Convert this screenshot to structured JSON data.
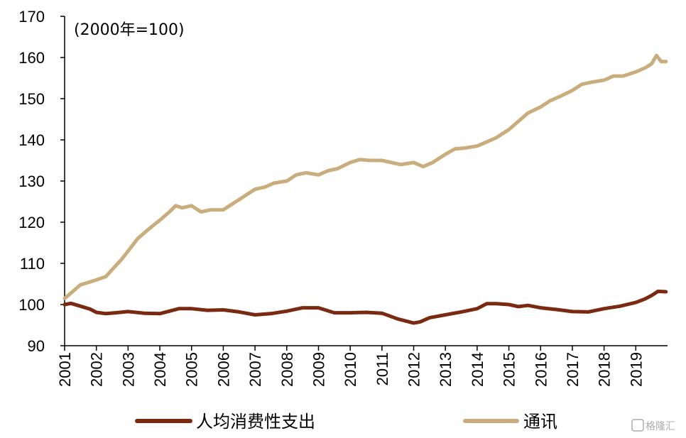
{
  "chart_data": {
    "type": "line",
    "annotation": "(2000年=100)",
    "ylim": [
      90,
      170
    ],
    "yticks": [
      90,
      100,
      110,
      120,
      130,
      140,
      150,
      160,
      170
    ],
    "xlim": [
      2001,
      2020
    ],
    "xticks": [
      "2001",
      "2002",
      "2003",
      "2004",
      "2005",
      "2006",
      "2007",
      "2008",
      "2009",
      "2010",
      "2011",
      "2012",
      "2013",
      "2014",
      "2015",
      "2016",
      "2017",
      "2018",
      "2019"
    ],
    "grid": false,
    "legend_position": "bottom",
    "series": [
      {
        "name": "人均消费性支出",
        "color": "#7a2a10",
        "x": [
          2001.0,
          2001.2,
          2001.5,
          2001.8,
          2002.0,
          2002.3,
          2002.6,
          2003.0,
          2003.5,
          2004.0,
          2004.3,
          2004.6,
          2005.0,
          2005.5,
          2006.0,
          2006.5,
          2007.0,
          2007.5,
          2008.0,
          2008.5,
          2009.0,
          2009.5,
          2010.0,
          2010.5,
          2011.0,
          2011.5,
          2012.0,
          2012.2,
          2012.5,
          2013.0,
          2013.5,
          2014.0,
          2014.3,
          2014.6,
          2015.0,
          2015.3,
          2015.6,
          2016.0,
          2016.5,
          2017.0,
          2017.5,
          2018.0,
          2018.5,
          2019.0,
          2019.3,
          2019.5,
          2019.7,
          2019.95
        ],
        "values": [
          100.0,
          100.3,
          99.6,
          98.9,
          98.1,
          97.8,
          98.0,
          98.3,
          97.9,
          97.8,
          98.4,
          99.0,
          99.0,
          98.6,
          98.7,
          98.2,
          97.5,
          97.8,
          98.4,
          99.2,
          99.2,
          98.0,
          98.0,
          98.1,
          97.9,
          96.5,
          95.5,
          95.8,
          96.8,
          97.5,
          98.2,
          99.0,
          100.2,
          100.2,
          100.0,
          99.5,
          99.8,
          99.2,
          98.8,
          98.3,
          98.2,
          99.0,
          99.6,
          100.5,
          101.4,
          102.2,
          103.2,
          103.1
        ]
      },
      {
        "name": "通讯",
        "color": "#c9ad7c",
        "x": [
          2001.0,
          2001.2,
          2001.5,
          2001.8,
          2002.0,
          2002.3,
          2002.5,
          2002.8,
          2003.0,
          2003.3,
          2003.6,
          2004.0,
          2004.3,
          2004.5,
          2004.7,
          2005.0,
          2005.3,
          2005.6,
          2006.0,
          2006.3,
          2006.5,
          2006.8,
          2007.0,
          2007.3,
          2007.6,
          2008.0,
          2008.3,
          2008.6,
          2009.0,
          2009.3,
          2009.6,
          2010.0,
          2010.3,
          2010.6,
          2011.0,
          2011.3,
          2011.6,
          2012.0,
          2012.3,
          2012.6,
          2013.0,
          2013.3,
          2013.6,
          2014.0,
          2014.3,
          2014.6,
          2015.0,
          2015.3,
          2015.6,
          2016.0,
          2016.3,
          2016.6,
          2017.0,
          2017.3,
          2017.6,
          2018.0,
          2018.3,
          2018.6,
          2019.0,
          2019.3,
          2019.5,
          2019.65,
          2019.8,
          2019.95
        ],
        "values": [
          101.5,
          102.8,
          104.8,
          105.5,
          106.0,
          106.8,
          108.5,
          111.0,
          113.0,
          116.0,
          118.0,
          120.5,
          122.5,
          124.0,
          123.5,
          124.0,
          122.5,
          123.0,
          123.0,
          124.5,
          125.5,
          127.0,
          128.0,
          128.5,
          129.5,
          130.0,
          131.5,
          132.0,
          131.5,
          132.5,
          133.0,
          134.5,
          135.2,
          135.0,
          135.0,
          134.5,
          134.0,
          134.5,
          133.5,
          134.5,
          136.5,
          137.8,
          138.0,
          138.5,
          139.5,
          140.5,
          142.5,
          144.5,
          146.5,
          148.0,
          149.5,
          150.5,
          152.0,
          153.5,
          154.0,
          154.5,
          155.5,
          155.5,
          156.5,
          157.5,
          158.5,
          160.5,
          159.0,
          159.0
        ]
      }
    ]
  },
  "watermark": "格隆汇"
}
